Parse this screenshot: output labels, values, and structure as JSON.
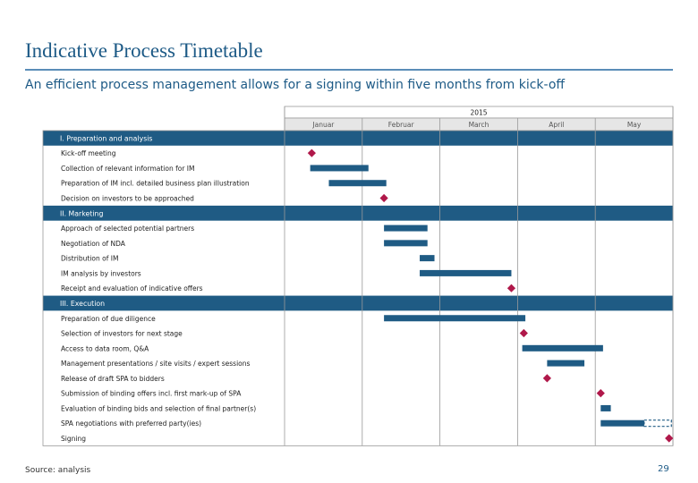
{
  "title": "Indicative Process Timetable",
  "subtitle": "An efficient process management allows for a signing within five months from kick-off",
  "footer": {
    "source": "Source: analysis",
    "page": "29"
  },
  "colors": {
    "accent": "#1d5a86",
    "section_band": "#1f5b84",
    "bar": "#1f5b84",
    "milestone": "#b0184a",
    "grid": "#9a9a9a"
  },
  "chart_data": {
    "type": "gantt",
    "year": "2015",
    "months": [
      "Januar",
      "Februar",
      "March",
      "April",
      "May"
    ],
    "x_unit": "month (0 = start of Januar, 5 = end of May)",
    "xlim": [
      0,
      5
    ],
    "sections": [
      {
        "title": "I. Preparation and analysis",
        "rows": [
          {
            "label": "Kick-off meeting",
            "milestone": 0.35
          },
          {
            "label": "Collection of relevant information for IM",
            "start": 0.33,
            "end": 1.08
          },
          {
            "label": "Preparation of IM incl. detailed business plan illustration",
            "start": 0.57,
            "end": 1.31
          },
          {
            "label": "Decision on investors to be approached",
            "milestone": 1.28
          }
        ]
      },
      {
        "title": "II. Marketing",
        "rows": [
          {
            "label": "Approach of selected potential partners",
            "start": 1.28,
            "end": 1.84
          },
          {
            "label": "Negotiation of NDA",
            "start": 1.28,
            "end": 1.84
          },
          {
            "label": "Distribution of IM",
            "start": 1.74,
            "end": 1.93
          },
          {
            "label": "IM analysis by investors",
            "start": 1.74,
            "end": 2.92
          },
          {
            "label": "Receipt and evaluation of indicative offers",
            "milestone": 2.92
          }
        ]
      },
      {
        "title": "III. Execution",
        "rows": [
          {
            "label": "Preparation of due diligence",
            "start": 1.28,
            "end": 3.1
          },
          {
            "label": "Selection of investors for next stage",
            "milestone": 3.08
          },
          {
            "label": "Access to data room, Q&A",
            "start": 3.06,
            "end": 4.1
          },
          {
            "label": "Management presentations / site visits / expert sessions",
            "start": 3.38,
            "end": 3.86
          },
          {
            "label": "Release of draft SPA to bidders",
            "milestone": 3.38
          },
          {
            "label": "Submission of binding offers incl. first mark-up of SPA",
            "milestone": 4.07
          },
          {
            "label": "Evaluation of binding bids and selection of final partner(s)",
            "start": 4.07,
            "end": 4.2
          },
          {
            "label": "SPA negotiations with preferred party(ies)",
            "start": 4.07,
            "end": 4.63,
            "dashed_end": 4.98
          },
          {
            "label": "Signing",
            "milestone": 4.95
          }
        ]
      }
    ]
  }
}
